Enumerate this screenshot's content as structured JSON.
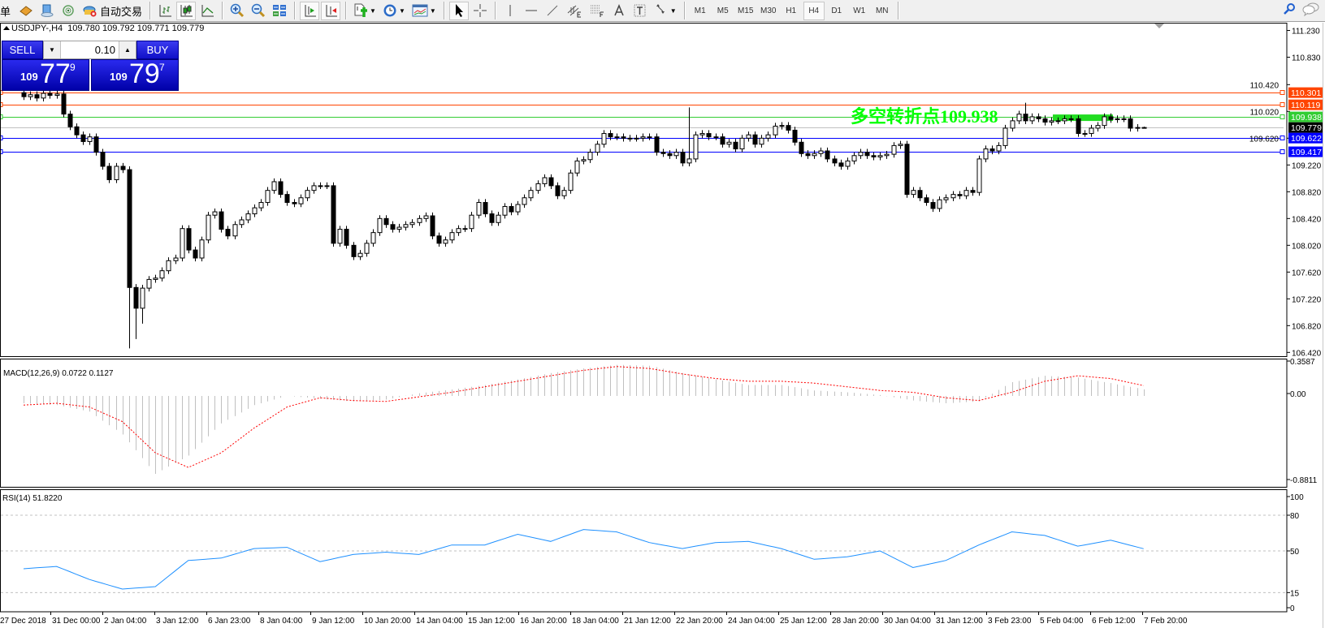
{
  "toolbar": {
    "partial_label": "单",
    "auto_trading_label": "自动交易",
    "buttons": [
      {
        "icon": "history-icon"
      },
      {
        "icon": "market-icon"
      },
      {
        "icon": "signals-icon"
      },
      {
        "icon": "auto-trading-icon",
        "label_key": "auto_trading_label"
      },
      {
        "sep": true
      },
      {
        "icon": "bar-chart-icon"
      },
      {
        "icon": "candlestick-icon",
        "active": true
      },
      {
        "icon": "line-chart-icon"
      },
      {
        "sep": true
      },
      {
        "icon": "zoom-in-icon"
      },
      {
        "icon": "zoom-out-icon"
      },
      {
        "icon": "tile-windows-icon"
      },
      {
        "sep": true
      },
      {
        "icon": "auto-scroll-icon",
        "active": true
      },
      {
        "icon": "chart-shift-icon",
        "active": true
      },
      {
        "sep": true
      },
      {
        "icon": "indicators-icon",
        "dropdown": true
      },
      {
        "icon": "periods-clock-icon",
        "dropdown": true
      },
      {
        "icon": "templates-icon",
        "dropdown": true
      },
      {
        "sep": true
      },
      {
        "icon": "cursor-icon",
        "active": true
      },
      {
        "icon": "crosshair-icon"
      },
      {
        "sep": true
      },
      {
        "icon": "vertical-line-icon"
      },
      {
        "icon": "horizontal-line-icon"
      },
      {
        "icon": "trendline-icon"
      },
      {
        "icon": "equidistant-channel-icon"
      },
      {
        "icon": "fibonacci-icon"
      },
      {
        "icon": "text-icon"
      },
      {
        "icon": "text-label-icon"
      },
      {
        "icon": "arrows-icon",
        "dropdown": true
      },
      {
        "sep": true
      }
    ],
    "timeframes": [
      "M1",
      "M5",
      "M15",
      "M30",
      "H1",
      "H4",
      "D1",
      "W1",
      "MN"
    ],
    "active_timeframe": "H4",
    "right_icons": [
      "search-icon",
      "chat-icon"
    ]
  },
  "chart": {
    "symbol_header": "USDJPY-,H4",
    "ohlc_header": "109.780 109.792 109.771 109.779",
    "annotation": "多空转折点109.938",
    "annotation_color": "#00FF00"
  },
  "one_click": {
    "sell_label": "SELL",
    "buy_label": "BUY",
    "lot": "0.10",
    "sell_price": {
      "big": "109",
      "main": "77",
      "pip": "9"
    },
    "buy_price": {
      "big": "109",
      "main": "79",
      "pip": "7"
    }
  },
  "chart_data": [
    {
      "type": "candlestick",
      "title": "USDJPY-,H4",
      "first_open": 110.3,
      "close": [
        110.24,
        110.27,
        110.22,
        110.29,
        110.26,
        110.28,
        109.98,
        109.79,
        109.67,
        109.57,
        109.64,
        109.41,
        109.2,
        109.0,
        109.2,
        109.15,
        107.39,
        107.08,
        107.38,
        107.51,
        107.53,
        107.64,
        107.79,
        107.83,
        108.27,
        107.95,
        107.83,
        108.1,
        108.47,
        108.52,
        108.26,
        108.16,
        108.33,
        108.4,
        108.49,
        108.58,
        108.66,
        108.84,
        108.97,
        108.78,
        108.66,
        108.64,
        108.73,
        108.84,
        108.91,
        108.91,
        108.91,
        108.05,
        108.26,
        108.02,
        107.85,
        107.9,
        108.05,
        108.21,
        108.42,
        108.33,
        108.26,
        108.29,
        108.33,
        108.36,
        108.42,
        108.46,
        108.16,
        108.05,
        108.1,
        108.21,
        108.27,
        108.27,
        108.47,
        108.66,
        108.49,
        108.36,
        108.47,
        108.6,
        108.52,
        108.63,
        108.73,
        108.84,
        108.94,
        109.03,
        108.91,
        108.76,
        108.84,
        109.1,
        109.28,
        109.3,
        109.41,
        109.53,
        109.69,
        109.64,
        109.64,
        109.62,
        109.62,
        109.62,
        109.64,
        109.64,
        109.41,
        109.39,
        109.36,
        109.41,
        109.25,
        109.31,
        109.67,
        109.69,
        109.64,
        109.64,
        109.53,
        109.56,
        109.46,
        109.62,
        109.67,
        109.53,
        109.62,
        109.67,
        109.8,
        109.81,
        109.74,
        109.56,
        109.39,
        109.36,
        109.39,
        109.43,
        109.31,
        109.25,
        109.2,
        109.28,
        109.36,
        109.41,
        109.36,
        109.34,
        109.36,
        109.38,
        109.51,
        109.53,
        108.78,
        108.84,
        108.73,
        108.66,
        108.57,
        108.7,
        108.73,
        108.78,
        108.76,
        108.84,
        108.81,
        109.31,
        109.46,
        109.43,
        109.51,
        109.77,
        109.88,
        109.98,
        109.88,
        109.94,
        109.91,
        109.86,
        109.88,
        109.88,
        109.91,
        109.91,
        109.69,
        109.69,
        109.77,
        109.81,
        109.94,
        109.9,
        109.91,
        109.91,
        109.77,
        109.78,
        109.779
      ],
      "notable_lows": {
        "16": 106.48,
        "17": 106.62,
        "18": 106.85
      },
      "notable_highs": {
        "5": 110.36,
        "101": 110.08,
        "152": 110.15
      },
      "last_bar": {
        "open": 109.78,
        "high": 109.792,
        "low": 109.771,
        "close": 109.779
      },
      "y_ticks": [
        "111.230",
        "110.830",
        "110.420",
        "110.020",
        "109.620",
        "109.220",
        "108.820",
        "108.420",
        "108.020",
        "107.620",
        "107.220",
        "106.820",
        "106.420"
      ],
      "x_tick_labels": [
        "27 Dec 2018",
        "31 Dec 00:00",
        "2 Jan 04:00",
        "3 Jan 12:00",
        "6 Jan 23:00",
        "8 Jan 04:00",
        "9 Jan 12:00",
        "10 Jan 20:00",
        "14 Jan 04:00",
        "15 Jan 12:00",
        "16 Jan 20:00",
        "18 Jan 04:00",
        "21 Jan 12:00",
        "22 Jan 20:00",
        "24 Jan 04:00",
        "25 Jan 12:00",
        "28 Jan 20:00",
        "30 Jan 04:00",
        "31 Jan 12:00",
        "3 Feb 23:00",
        "5 Feb 04:00",
        "6 Feb 12:00",
        "7 Feb 20:00"
      ],
      "ylim": [
        106.42,
        111.23
      ],
      "horizontal_lines": [
        {
          "price": "110.301",
          "color": "#FF4500",
          "label_text_color": "#FFFFFF"
        },
        {
          "price": "110.119",
          "color": "#FF4500",
          "label_text_color": "#FFFFFF"
        },
        {
          "price": "109.938",
          "color": "#32CD32",
          "label_text_color": "#FFFFFF"
        },
        {
          "price": "109.779",
          "color": "#C0C0C0",
          "label_bg": "#000000",
          "label_text_color": "#FFFFFF"
        },
        {
          "price": "109.622",
          "color": "#0000FF",
          "label_text_color": "#FFFFFF"
        },
        {
          "price": "109.417",
          "color": "#0000FF",
          "label_text_color": "#FFFFFF"
        }
      ],
      "highlight_zone": {
        "price": 109.938,
        "color": "#22DD22"
      },
      "bull_color": "#FFFFFF",
      "bear_color": "#000000"
    },
    {
      "type": "bar",
      "title": "MACD(12,26,9) 0.0722 0.1127",
      "sample_every_bars": 5,
      "histogram": [
        -0.08,
        -0.1,
        -0.17,
        -0.42,
        -0.85,
        -0.65,
        -0.3,
        -0.1,
        0.0,
        -0.03,
        -0.06,
        -0.04,
        0.03,
        0.07,
        0.12,
        0.18,
        0.25,
        0.3,
        0.34,
        0.33,
        0.25,
        0.18,
        0.12,
        0.12,
        0.06,
        0.04,
        0.01,
        -0.05,
        -0.08,
        -0.06,
        0.15,
        0.22,
        0.2,
        0.14,
        0.0722
      ],
      "signal": [
        -0.1,
        -0.08,
        -0.12,
        -0.28,
        -0.62,
        -0.78,
        -0.62,
        -0.35,
        -0.12,
        -0.02,
        -0.05,
        -0.06,
        -0.01,
        0.04,
        0.1,
        0.16,
        0.22,
        0.28,
        0.32,
        0.3,
        0.24,
        0.19,
        0.16,
        0.16,
        0.14,
        0.1,
        0.06,
        0.04,
        -0.02,
        -0.05,
        0.04,
        0.16,
        0.22,
        0.19,
        0.1127
      ],
      "y_ticks": [
        "0.3587",
        "0.00",
        "-0.8811"
      ],
      "ylim": [
        -0.8811,
        0.3587
      ],
      "histogram_color": "#C0C0C0",
      "signal_color": "#FF0000"
    },
    {
      "type": "line",
      "title": "RSI(14) 51.8220",
      "sample_every_bars": 5,
      "values": [
        35,
        37,
        26,
        18,
        20,
        42,
        44,
        52,
        53,
        41,
        47,
        49,
        47,
        55,
        55,
        64,
        58,
        68,
        66,
        57,
        52,
        57,
        58,
        52,
        43,
        45,
        50,
        36,
        42,
        55,
        66,
        63,
        54,
        59,
        51.822
      ],
      "levels": [
        80,
        50,
        15
      ],
      "y_ticks": [
        "100",
        "80",
        "50",
        "15",
        "0"
      ],
      "ylim": [
        0,
        100
      ],
      "line_color": "#1E90FF"
    }
  ]
}
